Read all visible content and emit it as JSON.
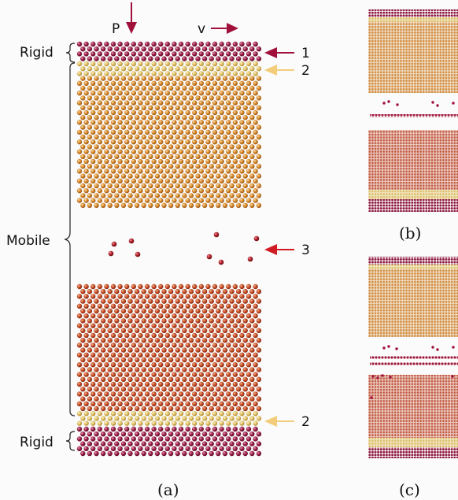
{
  "labels": {
    "top_rigid": "Rigid",
    "bottom_rigid": "Rigid",
    "mobile": "Mobile",
    "pressure": "P",
    "velocity": "v",
    "marker_1": "1",
    "marker_2_top": "2",
    "marker_3": "3",
    "marker_2_bottom": "2"
  },
  "captions": {
    "a": "(a)",
    "b": "(b)",
    "c": "(c)"
  },
  "colors": {
    "rigid_atom": "#8e1840",
    "mobile_top_atom": "#d98a2c",
    "mobile_top_edge_atom": "#e2c268",
    "mobile_bottom_atom": "#c85028",
    "free_atom": "#b0202a",
    "arrow_dark_red": "#a0103a",
    "arrow_red": "#d01a24",
    "arrow_yellow": "#f3cd7a",
    "text": "#111111"
  }
}
